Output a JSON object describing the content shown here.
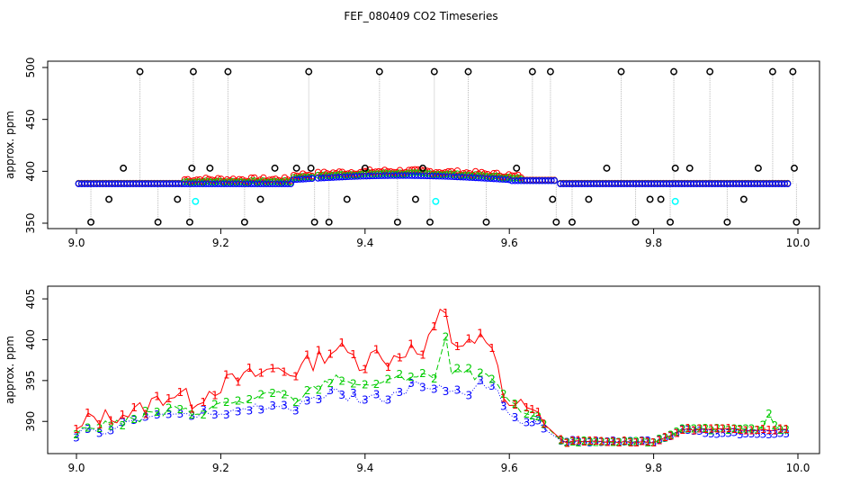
{
  "chart_data": [
    {
      "type": "scatter",
      "title": "FEF_080409  CO2 Timeseries",
      "ylabel": "approx. ppm",
      "xlabel": "",
      "xlim": [
        9.0,
        10.0
      ],
      "ylim": [
        350,
        500
      ],
      "x_ticks": [
        "9.0",
        "9.2",
        "9.4",
        "9.6",
        "9.8",
        "10.0"
      ],
      "y_ticks": [
        "350",
        "400",
        "450",
        "500"
      ],
      "grid": false,
      "colors": {
        "black": "#000000",
        "red": "#ff0000",
        "green": "#00cc00",
        "blue": "#0000ff",
        "cyan": "#00ffff",
        "connector": "#bbbbbb"
      },
      "outliers_high": [
        9.088,
        9.162,
        9.21,
        9.322,
        9.42,
        9.496,
        9.543,
        9.632,
        9.657,
        9.755,
        9.828,
        9.878,
        9.965,
        9.993
      ],
      "outliers_low": [
        9.02,
        9.113,
        9.157,
        9.233,
        9.33,
        9.35,
        9.445,
        9.49,
        9.568,
        9.665,
        9.687,
        9.775,
        9.823,
        9.902,
        9.998
      ],
      "mid_markers": [
        [
          9.045,
          373
        ],
        [
          9.065,
          403
        ],
        [
          9.14,
          373
        ],
        [
          9.16,
          403
        ],
        [
          9.185,
          403
        ],
        [
          9.255,
          373
        ],
        [
          9.275,
          403
        ],
        [
          9.305,
          403
        ],
        [
          9.325,
          403
        ],
        [
          9.375,
          373
        ],
        [
          9.4,
          403
        ],
        [
          9.47,
          373
        ],
        [
          9.48,
          403
        ],
        [
          9.61,
          403
        ],
        [
          9.66,
          373
        ],
        [
          9.71,
          373
        ],
        [
          9.735,
          403
        ],
        [
          9.795,
          373
        ],
        [
          9.81,
          373
        ],
        [
          9.83,
          403
        ],
        [
          9.85,
          403
        ],
        [
          9.925,
          373
        ],
        [
          9.945,
          403
        ],
        [
          9.995,
          403
        ]
      ],
      "cyan_points": [
        [
          9.165,
          371
        ],
        [
          9.498,
          371
        ],
        [
          9.83,
          371
        ]
      ]
    },
    {
      "type": "line",
      "title": "",
      "ylabel": "approx. ppm",
      "xlabel": "",
      "xlim": [
        9.0,
        10.0
      ],
      "ylim": [
        386.5,
        406
      ],
      "x_ticks": [
        "9.0",
        "9.2",
        "9.4",
        "9.6",
        "9.8",
        "10.0"
      ],
      "y_ticks": [
        "390",
        "395",
        "400",
        "405"
      ],
      "grid": false,
      "series": [
        {
          "name": "1",
          "color": "#ff0000",
          "style": "solid",
          "x": [
            9.0,
            9.02,
            9.04,
            9.06,
            9.08,
            9.1,
            9.12,
            9.14,
            9.16,
            9.18,
            9.2,
            9.22,
            9.24,
            9.26,
            9.28,
            9.3,
            9.32,
            9.34,
            9.36,
            9.38,
            9.4,
            9.41,
            9.42,
            9.44,
            9.46,
            9.48,
            9.5,
            9.51,
            9.52,
            9.54,
            9.56,
            9.58,
            9.59,
            9.6,
            9.62,
            9.64,
            9.66,
            9.68,
            9.7,
            9.75,
            9.8,
            9.82,
            9.84,
            9.88,
            9.92,
            9.96,
            9.99
          ],
          "y": [
            388.5,
            390.5,
            390.5,
            391,
            391,
            392,
            393,
            393.5,
            392.5,
            393.5,
            394.5,
            395,
            395.5,
            396,
            396.5,
            396,
            397,
            398,
            399,
            398,
            397,
            400,
            397,
            398,
            399,
            398,
            402,
            404.5,
            400,
            399,
            400,
            398,
            394,
            392,
            392,
            391,
            388,
            387.5,
            387.5,
            387.5,
            387.5,
            388,
            389,
            389,
            389,
            389,
            389
          ]
        },
        {
          "name": "2",
          "color": "#00cc00",
          "style": "dashed",
          "x": [
            9.0,
            9.02,
            9.04,
            9.06,
            9.08,
            9.1,
            9.12,
            9.14,
            9.16,
            9.18,
            9.2,
            9.22,
            9.24,
            9.26,
            9.28,
            9.3,
            9.32,
            9.34,
            9.36,
            9.38,
            9.4,
            9.42,
            9.44,
            9.46,
            9.48,
            9.5,
            9.51,
            9.52,
            9.54,
            9.56,
            9.58,
            9.6,
            9.62,
            9.64,
            9.66,
            9.68,
            9.7,
            9.75,
            9.8,
            9.82,
            9.84,
            9.88,
            9.92,
            9.95,
            9.96,
            9.97,
            9.99
          ],
          "y": [
            388.5,
            389.5,
            389.5,
            390,
            390,
            391,
            391,
            391.5,
            391,
            391.5,
            392,
            392.5,
            392.5,
            393,
            393.5,
            392.5,
            393.5,
            394.5,
            395.5,
            395,
            394,
            395,
            395,
            395.5,
            396,
            395,
            401,
            396,
            396,
            395.5,
            395,
            392,
            391,
            390.5,
            388,
            387.5,
            387.5,
            387.5,
            387.5,
            388,
            389,
            389,
            389,
            389,
            391,
            389,
            389
          ]
        },
        {
          "name": "3",
          "color": "#0000ff",
          "style": "dotted",
          "x": [
            9.0,
            9.02,
            9.04,
            9.06,
            9.08,
            9.1,
            9.12,
            9.14,
            9.16,
            9.18,
            9.2,
            9.22,
            9.24,
            9.26,
            9.28,
            9.3,
            9.32,
            9.34,
            9.36,
            9.38,
            9.4,
            9.42,
            9.44,
            9.46,
            9.48,
            9.5,
            9.52,
            9.54,
            9.56,
            9.58,
            9.6,
            9.62,
            9.64,
            9.66,
            9.68,
            9.7,
            9.75,
            9.8,
            9.82,
            9.84,
            9.88,
            9.92,
            9.96,
            9.99
          ],
          "y": [
            388.5,
            388.5,
            389,
            389.5,
            390,
            390.5,
            391,
            391,
            390.5,
            391,
            391,
            391,
            391.5,
            392,
            391.5,
            391.5,
            392.5,
            393,
            393.5,
            393,
            392.5,
            393,
            393,
            394,
            394.5,
            394,
            394,
            393.5,
            394.5,
            394.5,
            391,
            390,
            390,
            387.5,
            387.5,
            387.5,
            387.5,
            387.5,
            388,
            389,
            388.5,
            388.5,
            388.5,
            388.5
          ]
        }
      ]
    }
  ]
}
